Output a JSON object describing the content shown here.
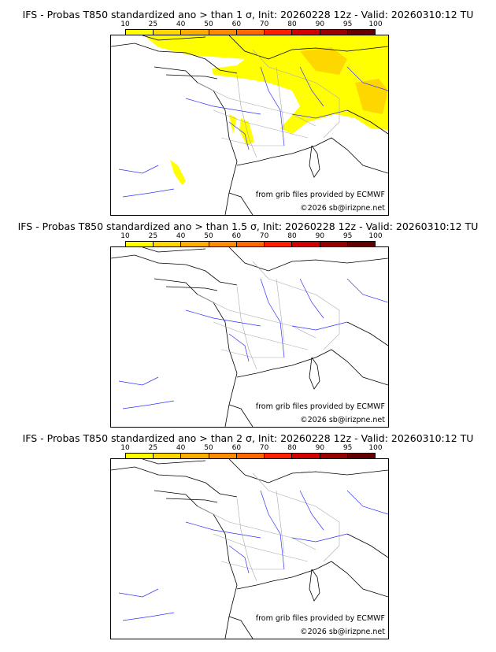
{
  "panels": [
    {
      "title": "IFS - Probas T850  standardized ano > than 1 σ, Init: 20260228 12z - Valid: 20260310:12 TU",
      "has_shading": true
    },
    {
      "title": "IFS - Probas T850  standardized ano > than 1.5 σ, Init: 20260228 12z - Valid: 20260310:12 TU",
      "has_shading": false
    },
    {
      "title": "IFS - Probas T850  standardized ano > than 2 σ, Init: 20260228 12z - Valid: 20260310:12 TU",
      "has_shading": false
    }
  ],
  "colorbar": {
    "ticks": [
      "10",
      "25",
      "40",
      "50",
      "60",
      "70",
      "80",
      "90",
      "95",
      "100"
    ],
    "colors": [
      "#ffff00",
      "#ffd700",
      "#ffae00",
      "#ff8c00",
      "#ff6a00",
      "#ff2000",
      "#d40000",
      "#990000",
      "#660000"
    ]
  },
  "credits": {
    "source": "from grib files provided by ECMWF",
    "copyright": "©2026 sb@irizpne.net"
  }
}
